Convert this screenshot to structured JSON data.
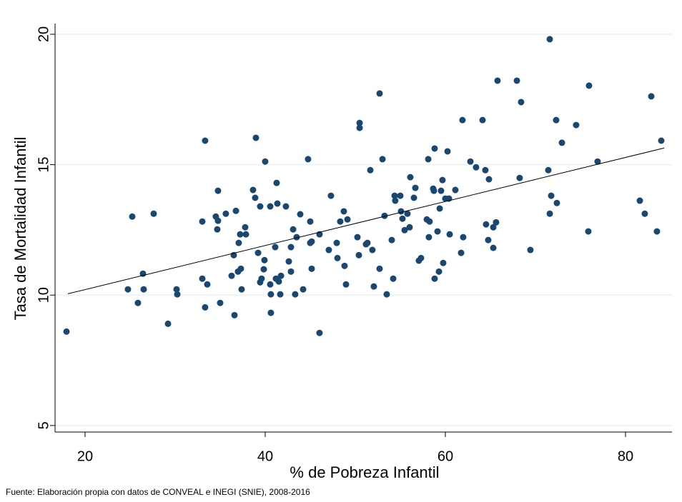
{
  "chart_data": {
    "type": "scatter",
    "x_label": "% de Pobreza Infantil",
    "y_label": "Tasa de Mortalidad Infantil",
    "caption": "Fuente: Elaboración propia con datos de CONVEAL e INEGI (SNIE), 2008-2016",
    "xlim": [
      16.67,
      85.16
    ],
    "ylim": [
      4.75,
      20.41
    ],
    "xticks": [
      20,
      40,
      60,
      80
    ],
    "yticks": [
      5,
      10,
      15,
      20
    ],
    "grid": true,
    "points": {
      "color": "#1a476f",
      "x": [
        17.94,
        24.76,
        25.24,
        25.87,
        26.43,
        26.51,
        27.62,
        29.21,
        30.16,
        30.24,
        33.02,
        33.02,
        33.33,
        33.33,
        33.57,
        34.52,
        34.68,
        34.76,
        34.76,
        35.0,
        35.63,
        36.27,
        36.51,
        36.59,
        36.75,
        36.98,
        37.06,
        37.22,
        37.3,
        37.38,
        37.78,
        37.86,
        38.65,
        38.89,
        38.97,
        39.21,
        39.44,
        39.44,
        39.6,
        39.84,
        39.92,
        40.0,
        40.56,
        40.56,
        40.63,
        40.63,
        41.11,
        41.19,
        41.27,
        41.35,
        41.51,
        41.67,
        41.75,
        42.3,
        42.62,
        42.86,
        42.86,
        43.1,
        43.33,
        43.49,
        43.89,
        44.21,
        44.76,
        45.0,
        45.0,
        45.16,
        45.16,
        46.03,
        46.03,
        47.06,
        47.3,
        47.94,
        48.02,
        48.33,
        48.73,
        48.81,
        48.97,
        49.13,
        50.24,
        50.4,
        50.48,
        50.48,
        51.19,
        51.35,
        51.67,
        51.9,
        52.06,
        52.7,
        52.7,
        53.02,
        53.25,
        53.49,
        54.05,
        54.21,
        54.37,
        54.44,
        55.0,
        55.08,
        55.24,
        55.48,
        55.79,
        56.03,
        56.11,
        56.51,
        56.67,
        57.06,
        57.3,
        57.94,
        58.1,
        58.17,
        58.25,
        58.65,
        58.73,
        58.81,
        58.81,
        59.13,
        59.29,
        59.37,
        59.52,
        59.68,
        59.76,
        60.0,
        60.24,
        60.4,
        60.48,
        61.11,
        61.75,
        61.9,
        61.98,
        62.78,
        63.41,
        64.13,
        64.44,
        64.52,
        64.76,
        64.84,
        65.32,
        65.32,
        65.63,
        65.79,
        67.94,
        68.41,
        68.25,
        69.44,
        71.43,
        71.59,
        71.59,
        71.75,
        72.3,
        72.38,
        72.94,
        74.52,
        75.87,
        75.95,
        76.9,
        81.59,
        82.14,
        82.86,
        83.49,
        83.97
      ],
      "y": [
        8.6,
        10.22,
        13.01,
        9.7,
        10.82,
        10.22,
        13.12,
        8.9,
        10.22,
        10.03,
        12.82,
        10.63,
        15.92,
        9.53,
        10.41,
        13.01,
        12.52,
        12.85,
        14.0,
        9.7,
        13.12,
        10.74,
        11.53,
        9.23,
        13.23,
        10.9,
        12.0,
        12.33,
        11.01,
        10.22,
        12.6,
        12.33,
        14.03,
        13.73,
        16.03,
        11.62,
        13.4,
        10.49,
        10.63,
        10.99,
        11.34,
        15.12,
        13.4,
        10.41,
        10.03,
        9.32,
        11.84,
        10.63,
        14.3,
        13.51,
        10.52,
        10.03,
        10.74,
        13.4,
        11.29,
        11.84,
        10.9,
        12.52,
        10.03,
        12.22,
        13.1,
        10.22,
        15.21,
        12.82,
        12.0,
        11.01,
        12.05,
        12.33,
        8.55,
        11.73,
        13.81,
        12.0,
        11.42,
        12.82,
        13.21,
        11.12,
        10.41,
        12.9,
        12.22,
        11.53,
        16.41,
        16.6,
        11.95,
        12.0,
        14.79,
        11.73,
        10.33,
        17.73,
        11.01,
        15.21,
        13.04,
        10.03,
        12.11,
        10.63,
        13.81,
        13.62,
        13.81,
        13.21,
        12.93,
        12.49,
        13.12,
        12.6,
        14.52,
        13.73,
        14.11,
        11.32,
        11.42,
        12.9,
        15.21,
        12.22,
        12.82,
        14.08,
        14.0,
        15.62,
        10.63,
        12.44,
        10.9,
        13.32,
        14.0,
        14.41,
        11.23,
        13.7,
        15.51,
        13.7,
        12.33,
        14.03,
        11.62,
        16.71,
        12.22,
        15.12,
        14.9,
        16.71,
        14.79,
        12.71,
        12.11,
        14.44,
        12.6,
        11.81,
        12.79,
        18.22,
        18.22,
        17.4,
        14.49,
        11.73,
        14.79,
        19.81,
        13.12,
        13.81,
        16.71,
        13.53,
        15.84,
        16.52,
        12.44,
        18.03,
        15.12,
        13.62,
        13.12,
        17.62,
        12.44,
        15.92
      ]
    },
    "fit": {
      "color": "#000000",
      "x": [
        18.1,
        84.3
      ],
      "y": [
        10.05,
        15.64
      ]
    }
  }
}
